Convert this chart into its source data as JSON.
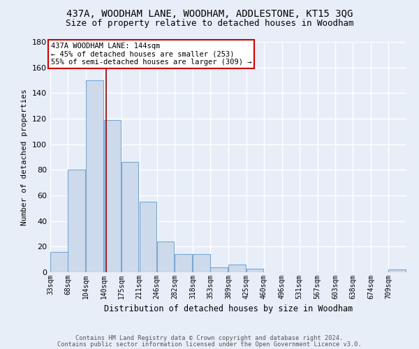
{
  "title1": "437A, WOODHAM LANE, WOODHAM, ADDLESTONE, KT15 3QG",
  "title2": "Size of property relative to detached houses in Woodham",
  "xlabel": "Distribution of detached houses by size in Woodham",
  "ylabel": "Number of detached properties",
  "footnote1": "Contains HM Land Registry data © Crown copyright and database right 2024.",
  "footnote2": "Contains public sector information licensed under the Open Government Licence v3.0.",
  "annotation_line1": "437A WOODHAM LANE: 144sqm",
  "annotation_line2": "← 45% of detached houses are smaller (253)",
  "annotation_line3": "55% of semi-detached houses are larger (309) →",
  "bar_color": "#ccdaec",
  "bar_edge_color": "#7ba7d0",
  "bins": [
    33,
    68,
    104,
    140,
    175,
    211,
    246,
    282,
    318,
    353,
    389,
    425,
    460,
    496,
    531,
    567,
    603,
    638,
    674,
    709,
    745
  ],
  "counts": [
    16,
    80,
    150,
    119,
    86,
    55,
    24,
    14,
    14,
    4,
    6,
    3,
    0,
    0,
    0,
    0,
    0,
    0,
    0,
    2
  ],
  "property_size": 144,
  "vline_color": "#8b0000",
  "ylim": [
    0,
    180
  ],
  "yticks": [
    0,
    20,
    40,
    60,
    80,
    100,
    120,
    140,
    160,
    180
  ],
  "background_color": "#e8eef8",
  "plot_bg_color": "#e8eef8",
  "grid_color": "#ffffff",
  "annotation_box_color": "#ffffff",
  "annotation_box_edge": "#cc0000",
  "title1_fontsize": 10,
  "title2_fontsize": 9
}
